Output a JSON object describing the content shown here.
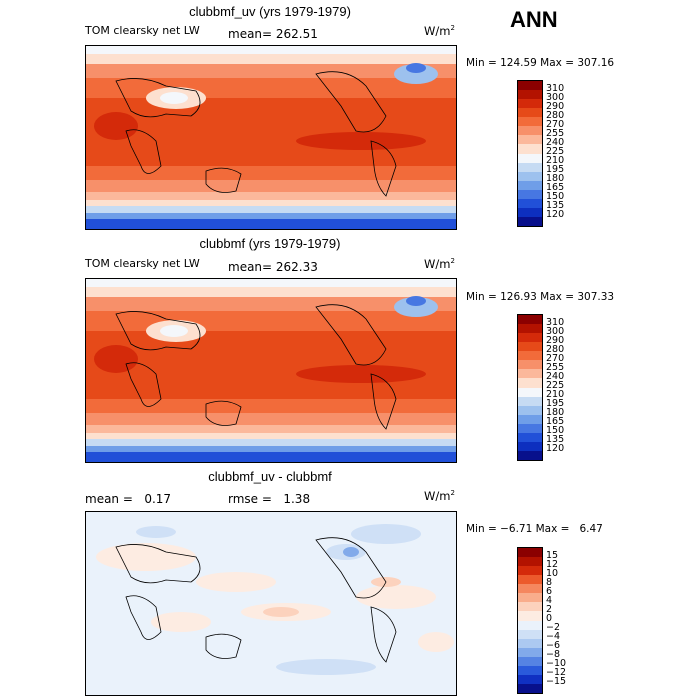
{
  "header": {
    "season": "ANN"
  },
  "panels": [
    {
      "title": "clubbmf_uv (yrs 1979-1979)",
      "variable": "TOM clearsky net LW",
      "stat1": "mean= 262.51",
      "stat2": "",
      "units": "W/m",
      "units_sup": "2",
      "minmax": "Min = 124.59 Max = 307.16",
      "colorbar_labels": [
        "310",
        "300",
        "290",
        "280",
        "270",
        "255",
        "240",
        "225",
        "210",
        "195",
        "180",
        "165",
        "150",
        "135",
        "120"
      ]
    },
    {
      "title": "clubbmf (yrs 1979-1979)",
      "variable": "TOM clearsky net LW",
      "stat1": "mean= 262.33",
      "stat2": "",
      "units": "W/m",
      "units_sup": "2",
      "minmax": "Min = 126.93 Max = 307.33",
      "colorbar_labels": [
        "310",
        "300",
        "290",
        "280",
        "270",
        "255",
        "240",
        "225",
        "210",
        "195",
        "180",
        "165",
        "150",
        "135",
        "120"
      ]
    },
    {
      "title": "clubbmf_uv - clubbmf",
      "variable": "",
      "stat1": "mean =   0.17",
      "stat2": "rmse =   1.38",
      "units": "W/m",
      "units_sup": "2",
      "minmax": "Min = −6.71 Max =   6.47",
      "colorbar_labels": [
        "15",
        "12",
        "10",
        "8",
        "6",
        "4",
        "2",
        "0",
        "−2",
        "−4",
        "−6",
        "−8",
        "−10",
        "−12",
        "−15"
      ]
    }
  ],
  "colors": {
    "full_scale": [
      "#8b0000",
      "#b31200",
      "#d42a0a",
      "#e64a19",
      "#f26b3a",
      "#f7906a",
      "#fbb89b",
      "#fde0cf",
      "#f4f7fb",
      "#c6dbf3",
      "#9dc1ee",
      "#6f9ee8",
      "#4777e2",
      "#2150d8",
      "#0d2fbf",
      "#08108c"
    ],
    "diff_scale": [
      "#8b0000",
      "#b31200",
      "#d42a0a",
      "#ec5a2c",
      "#f5875f",
      "#f9ad8c",
      "#fcd2bd",
      "#fdece2",
      "#eaf2fb",
      "#cfe0f6",
      "#acc9f1",
      "#82aaea",
      "#5583e3",
      "#2a5adb",
      "#1030c2",
      "#08108c"
    ]
  }
}
